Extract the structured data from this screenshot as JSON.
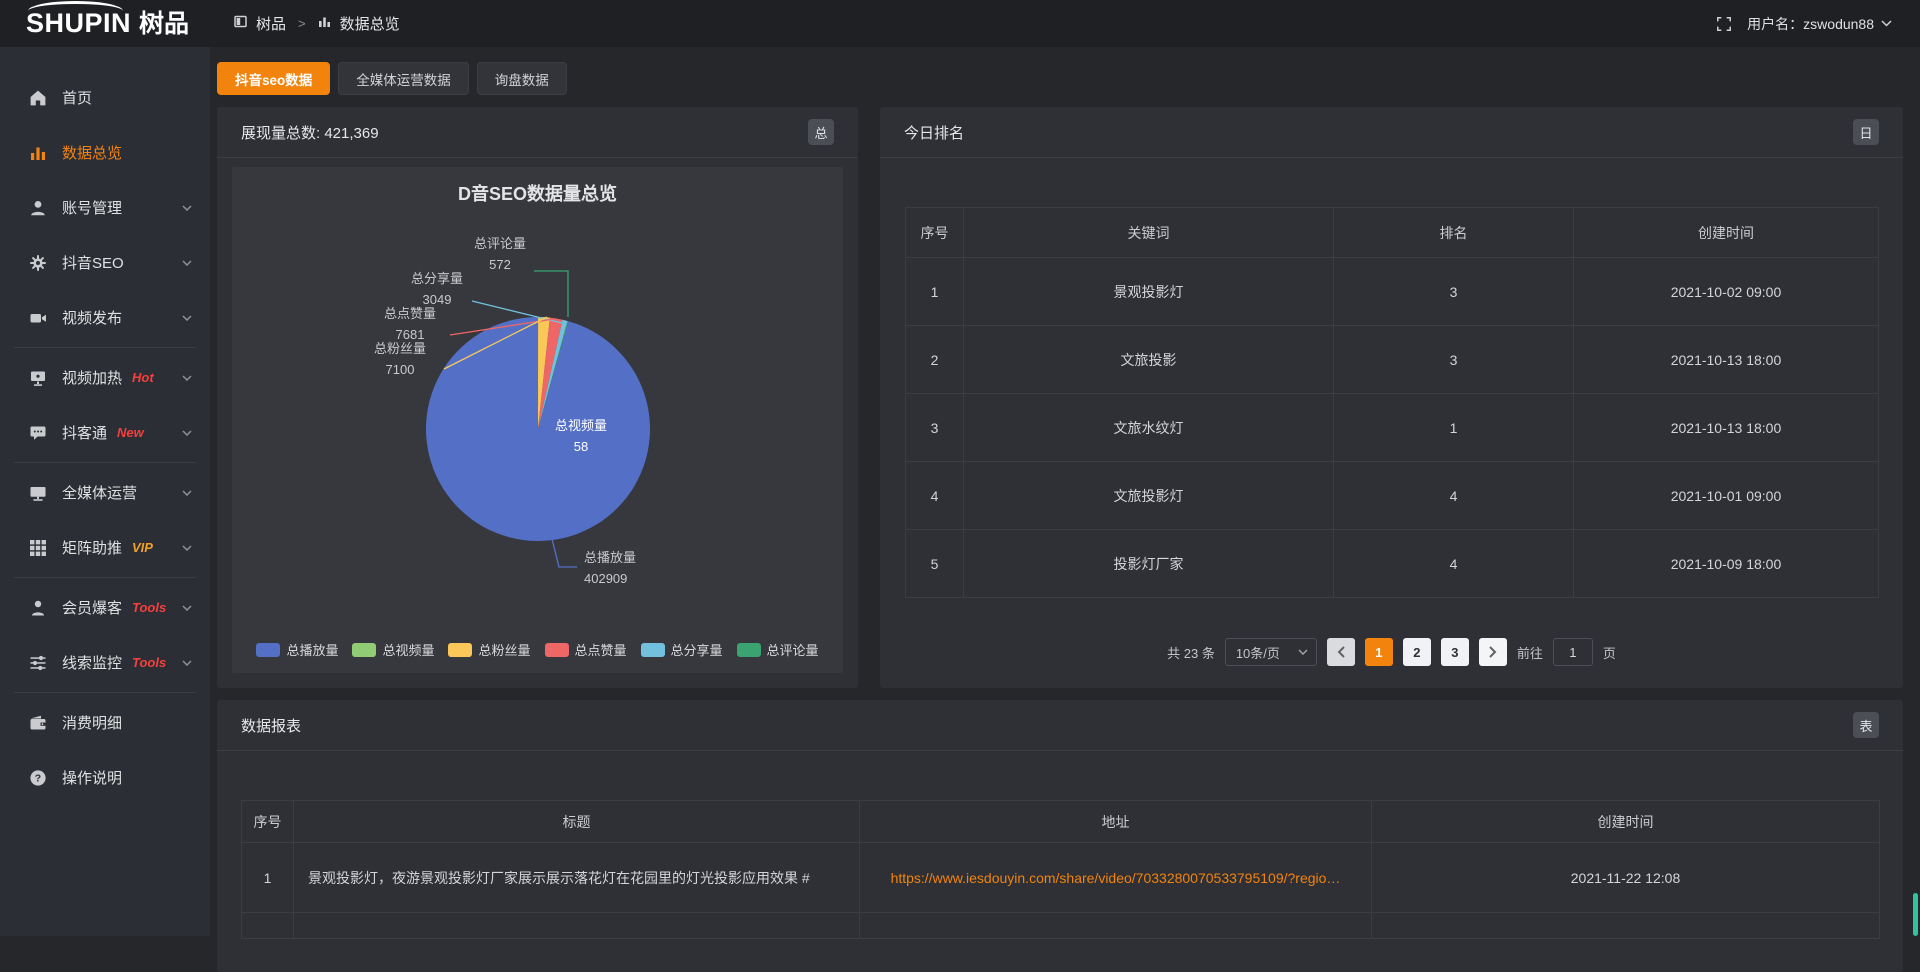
{
  "header": {
    "logo_en": "SHUPIN",
    "logo_cn": "树品",
    "breadcrumb_root": "树品",
    "breadcrumb_sep": ">",
    "breadcrumb_current": "数据总览",
    "username": "用户名：zswodun88"
  },
  "sidebar": {
    "items": [
      {
        "label": "首页"
      },
      {
        "label": "数据总览"
      },
      {
        "label": "账号管理"
      },
      {
        "label": "抖音SEO"
      },
      {
        "label": "视频发布"
      },
      {
        "label": "视频加热",
        "badge": "Hot"
      },
      {
        "label": "抖客通",
        "badge": "New"
      },
      {
        "label": "全媒体运营"
      },
      {
        "label": "矩阵助推",
        "badge": "VIP"
      },
      {
        "label": "会员爆客",
        "badge": "Tools"
      },
      {
        "label": "线索监控",
        "badge": "Tools"
      },
      {
        "label": "消费明细"
      },
      {
        "label": "操作说明"
      }
    ]
  },
  "tabs": [
    {
      "label": "抖音seo数据"
    },
    {
      "label": "全媒体运营数据"
    },
    {
      "label": "询盘数据"
    }
  ],
  "overview_card": {
    "stat_label": "展现量总数: 421,369",
    "badge": "总"
  },
  "chart_data": {
    "type": "pie",
    "title": "D音SEO数据量总览",
    "total": 421369,
    "series": [
      {
        "name": "总播放量",
        "value": 402909,
        "color": "#5470c6"
      },
      {
        "name": "总视频量",
        "value": 58,
        "color": "#91cc75"
      },
      {
        "name": "总粉丝量",
        "value": 7100,
        "color": "#fac858"
      },
      {
        "name": "总点赞量",
        "value": 7681,
        "color": "#ee6666"
      },
      {
        "name": "总分享量",
        "value": 3049,
        "color": "#73c0de"
      },
      {
        "name": "总评论量",
        "value": 572,
        "color": "#3ba272"
      }
    ],
    "draw_order": [
      "总视频量",
      "总粉丝量",
      "总点赞量",
      "总分享量",
      "总评论量",
      "总播放量"
    ],
    "legend": [
      "总播放量",
      "总视频量",
      "总粉丝量",
      "总点赞量",
      "总分享量",
      "总评论量"
    ],
    "legend_position": "bottom"
  },
  "ranking_card": {
    "title": "今日排名",
    "badge": "日",
    "columns": [
      "序号",
      "关键词",
      "排名",
      "创建时间"
    ],
    "rows": [
      [
        "1",
        "景观投影灯",
        "3",
        "2021-10-02 09:00"
      ],
      [
        "2",
        "文旅投影",
        "3",
        "2021-10-13 18:00"
      ],
      [
        "3",
        "文旅水纹灯",
        "1",
        "2021-10-13 18:00"
      ],
      [
        "4",
        "文旅投影灯",
        "4",
        "2021-10-01 09:00"
      ],
      [
        "5",
        "投影灯厂家",
        "4",
        "2021-10-09 18:00"
      ]
    ],
    "pagination": {
      "total": "共 23 条",
      "page_size": "10条/页",
      "pages": [
        "1",
        "2",
        "3"
      ],
      "active_page": "1",
      "goto_label": "前往",
      "goto_value": "1",
      "unit_label": "页"
    }
  },
  "report_card": {
    "title": "数据报表",
    "badge": "表",
    "columns": [
      "序号",
      "标题",
      "地址",
      "创建时间"
    ],
    "rows": [
      [
        "1",
        "景观投影灯，夜游景观投影灯厂家展示展示落花灯在花园里的灯光投影应用效果 #",
        "https://www.iesdouyin.com/share/video/7033280070533795109/?regio…",
        "2021-11-22 12:08"
      ]
    ]
  }
}
